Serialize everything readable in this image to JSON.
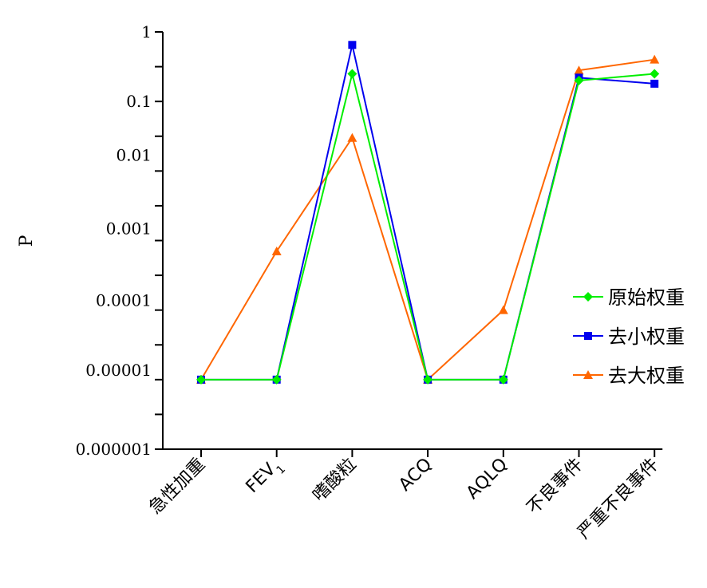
{
  "chart_data": {
    "type": "line",
    "ylabel": "P",
    "xlabel": "",
    "yscale": "log",
    "ylim": [
      1e-06,
      1
    ],
    "y_ticks": [
      {
        "value": 1,
        "label": "1"
      },
      {
        "value": 0.1,
        "label": "0.1"
      },
      {
        "value": 0.01,
        "label": "0.01"
      },
      {
        "value": 0.001,
        "label": "0.001"
      },
      {
        "value": 0.0001,
        "label": "0.0001"
      },
      {
        "value": 1e-05,
        "label": "0.00001"
      },
      {
        "value": 1e-06,
        "label": "0.000001"
      }
    ],
    "categories": [
      "急性加重",
      "FEV1",
      "嗜酸粒",
      "ACQ",
      "AQLQ",
      "不良事件",
      "严重不良事件"
    ],
    "series": [
      {
        "name": "原始权重",
        "color": "#00ee00",
        "marker": "diamond",
        "values": [
          1e-05,
          1e-05,
          0.25,
          1e-05,
          1e-05,
          0.2,
          0.25
        ]
      },
      {
        "name": "去小权重",
        "color": "#0000ee",
        "marker": "square",
        "values": [
          1e-05,
          1e-05,
          0.65,
          1e-05,
          1e-05,
          0.22,
          0.18
        ]
      },
      {
        "name": "去大权重",
        "color": "#ff6600",
        "marker": "triangle",
        "values": [
          1e-05,
          0.0007,
          0.03,
          1e-05,
          0.0001,
          0.28,
          0.4
        ]
      }
    ],
    "legend_position": "right",
    "grid": false
  }
}
